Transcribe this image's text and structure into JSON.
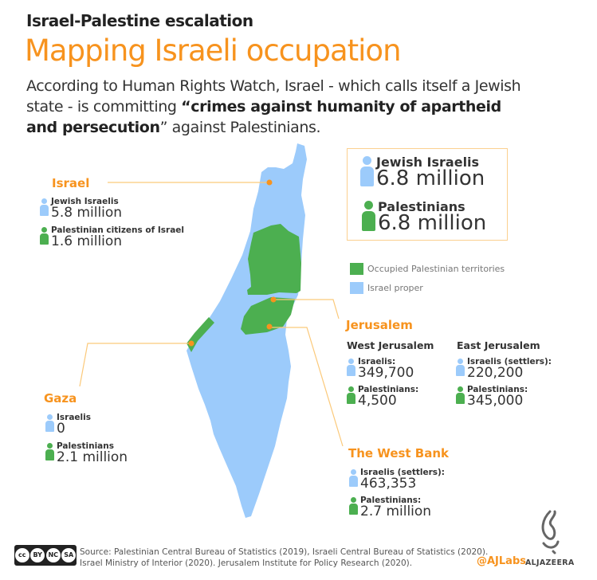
{
  "header": {
    "kicker": "Israel-Palestine escalation",
    "title": "Mapping Israeli occupation",
    "intro_pre": "According to Human Rights Watch, Israel - which calls itself a Jewish state - is committing ",
    "intro_bold": "“crimes against humanity of apartheid and persecution",
    "intro_post": "” against Palestinians."
  },
  "colors": {
    "israel_proper": "#9ccbfb",
    "occupied": "#4caf50",
    "accent": "#f7931e"
  },
  "totals": [
    {
      "label": "Jewish Israelis",
      "value": "6.8 million",
      "icon": "person-icon-blue"
    },
    {
      "label": "Palestinians",
      "value": "6.8 million",
      "icon": "person-icon-green"
    }
  ],
  "legend": [
    {
      "label": "Occupied Palestinian territories",
      "color": "#4caf50"
    },
    {
      "label": "Israel proper",
      "color": "#9ccbfb"
    }
  ],
  "israel": {
    "label": "Israel",
    "stats": [
      {
        "label": "Jewish Israelis",
        "value": "5.8 million"
      },
      {
        "label": "Palestinian citizens of Israel",
        "value": "1.6 million"
      }
    ]
  },
  "gaza": {
    "label": "Gaza",
    "stats": [
      {
        "label": "Israelis",
        "value": "0"
      },
      {
        "label": "Palestinians",
        "value": "2.1 million"
      }
    ]
  },
  "jerusalem": {
    "label": "Jerusalem",
    "west": {
      "label": "West Jerusalem",
      "stats": [
        {
          "label": "Israelis:",
          "value": "349,700"
        },
        {
          "label": "Palestinians:",
          "value": "4,500"
        }
      ]
    },
    "east": {
      "label": "East Jerusalem",
      "stats": [
        {
          "label": "Israelis (settlers):",
          "value": "220,200"
        },
        {
          "label": "Palestinians:",
          "value": "345,000"
        }
      ]
    }
  },
  "westbank": {
    "label": "The West Bank",
    "stats": [
      {
        "label": "Israelis (settlers):",
        "value": "463,353"
      },
      {
        "label": "Palestinians:",
        "value": "2.7 million"
      }
    ]
  },
  "footer": {
    "license": [
      "BY",
      "NC",
      "SA"
    ],
    "source_line1": "Source: Palestinian Central Bureau of Statistics (2019), Israeli Central Bureau of Statistics (2020).",
    "source_line2": "Israel Ministry of Interior (2020). Jerusalem Institute for Policy Research (2020).",
    "handle": "@AJLabs",
    "brand": "ALJAZEERA"
  }
}
